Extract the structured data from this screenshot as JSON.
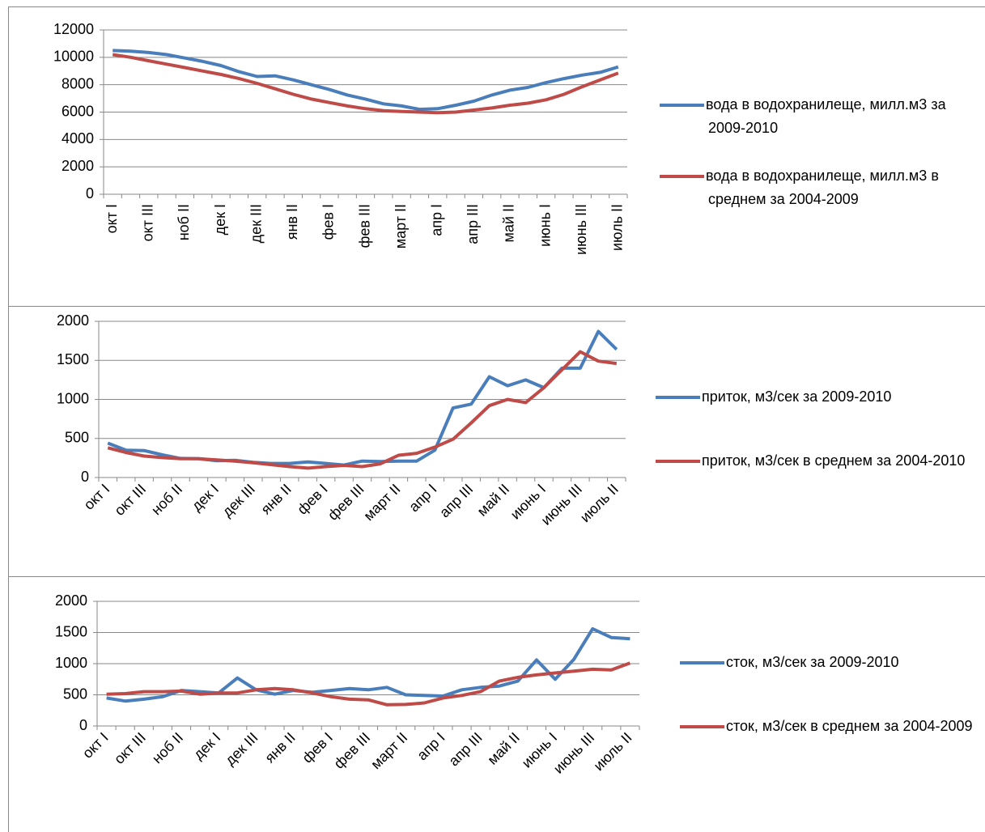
{
  "chart_data": [
    {
      "type": "line",
      "categories": [
        "окт I",
        null,
        "окт III",
        null,
        "ноб II",
        null,
        "дек I",
        null,
        "дек III",
        null,
        "янв II",
        null,
        "фев I",
        null,
        "фев III",
        null,
        "март II",
        null,
        "апр I",
        null,
        "апр III",
        null,
        "май II",
        null,
        "июнь I",
        null,
        "июнь III",
        null,
        "июль II"
      ],
      "series": [
        {
          "name": "вода в водохранилеще, милл.м3 за 2009-2010",
          "color": "#4a7ebb",
          "values": [
            10500,
            10450,
            10350,
            10200,
            9950,
            9700,
            9400,
            8950,
            8600,
            8650,
            8350,
            8000,
            7650,
            7250,
            6950,
            6600,
            6450,
            6200,
            6250,
            6500,
            6800,
            7250,
            7600,
            7800,
            8150,
            8450,
            8700,
            8900,
            9300
          ]
        },
        {
          "name": "вода в водохранилеще, милл.м3 в среднем за 2004-2009",
          "color": "#be4b48",
          "values": [
            10200,
            10000,
            9750,
            9500,
            9250,
            9000,
            8750,
            8450,
            8100,
            7700,
            7300,
            6950,
            6700,
            6450,
            6250,
            6100,
            6050,
            6000,
            5950,
            6000,
            6150,
            6300,
            6500,
            6650,
            6900,
            7300,
            7850,
            8350,
            8850
          ]
        }
      ],
      "ylim": [
        0,
        12000
      ],
      "yticks": [
        0,
        2000,
        4000,
        6000,
        8000,
        10000,
        12000
      ],
      "grid": true,
      "legend": "right"
    },
    {
      "type": "line",
      "categories": [
        "окт I",
        null,
        "окт III",
        null,
        "ноб II",
        null,
        "дек I",
        null,
        "дек III",
        null,
        "янв II",
        null,
        "фев I",
        null,
        "фев III",
        null,
        "март II",
        null,
        "апр I",
        null,
        "апр III",
        null,
        "май II",
        null,
        "июнь I",
        null,
        "июнь III",
        null,
        "июль II"
      ],
      "series": [
        {
          "name": "приток, м3/сек за 2009-2010",
          "color": "#4a7ebb",
          "values": [
            440,
            350,
            345,
            290,
            245,
            240,
            215,
            220,
            195,
            180,
            180,
            200,
            180,
            160,
            210,
            205,
            210,
            210,
            350,
            890,
            940,
            1290,
            1175,
            1250,
            1150,
            1400,
            1400,
            1870,
            1640
          ]
        },
        {
          "name": "приток, м3/сек в среднем за 2004-2010",
          "color": "#be4b48",
          "values": [
            380,
            320,
            275,
            255,
            240,
            240,
            225,
            210,
            190,
            165,
            140,
            120,
            140,
            155,
            140,
            175,
            285,
            310,
            390,
            490,
            700,
            920,
            1000,
            960,
            1150,
            1380,
            1610,
            1490,
            1460
          ]
        }
      ],
      "ylim": [
        0,
        2000
      ],
      "yticks": [
        0,
        500,
        1000,
        1500,
        2000
      ],
      "grid": true,
      "legend": "right"
    },
    {
      "type": "line",
      "categories": [
        "окт I",
        null,
        "окт III",
        null,
        "ноб II",
        null,
        "дек I",
        null,
        "дек III",
        null,
        "янв II",
        null,
        "фев I",
        null,
        "фев III",
        null,
        "март II",
        null,
        "апр I",
        null,
        "апр III",
        null,
        "май II",
        null,
        "июнь I",
        null,
        "июнь III",
        null,
        "июль II"
      ],
      "series": [
        {
          "name": "сток, м3/сек за 2009-2010",
          "color": "#4a7ebb",
          "values": [
            450,
            400,
            430,
            470,
            570,
            550,
            530,
            770,
            580,
            510,
            570,
            540,
            570,
            600,
            580,
            620,
            500,
            490,
            480,
            580,
            620,
            640,
            720,
            1060,
            750,
            1070,
            1560,
            1420,
            1400
          ]
        },
        {
          "name": "сток, м3/сек в среднем за 2004-2009",
          "color": "#be4b48",
          "values": [
            510,
            520,
            550,
            550,
            560,
            510,
            530,
            530,
            580,
            600,
            580,
            530,
            470,
            430,
            420,
            340,
            345,
            370,
            450,
            490,
            550,
            720,
            780,
            820,
            850,
            880,
            910,
            900,
            1010
          ]
        }
      ],
      "ylim": [
        0,
        2000
      ],
      "yticks": [
        0,
        500,
        1000,
        1500,
        2000
      ],
      "grid": true,
      "legend": "right"
    }
  ]
}
